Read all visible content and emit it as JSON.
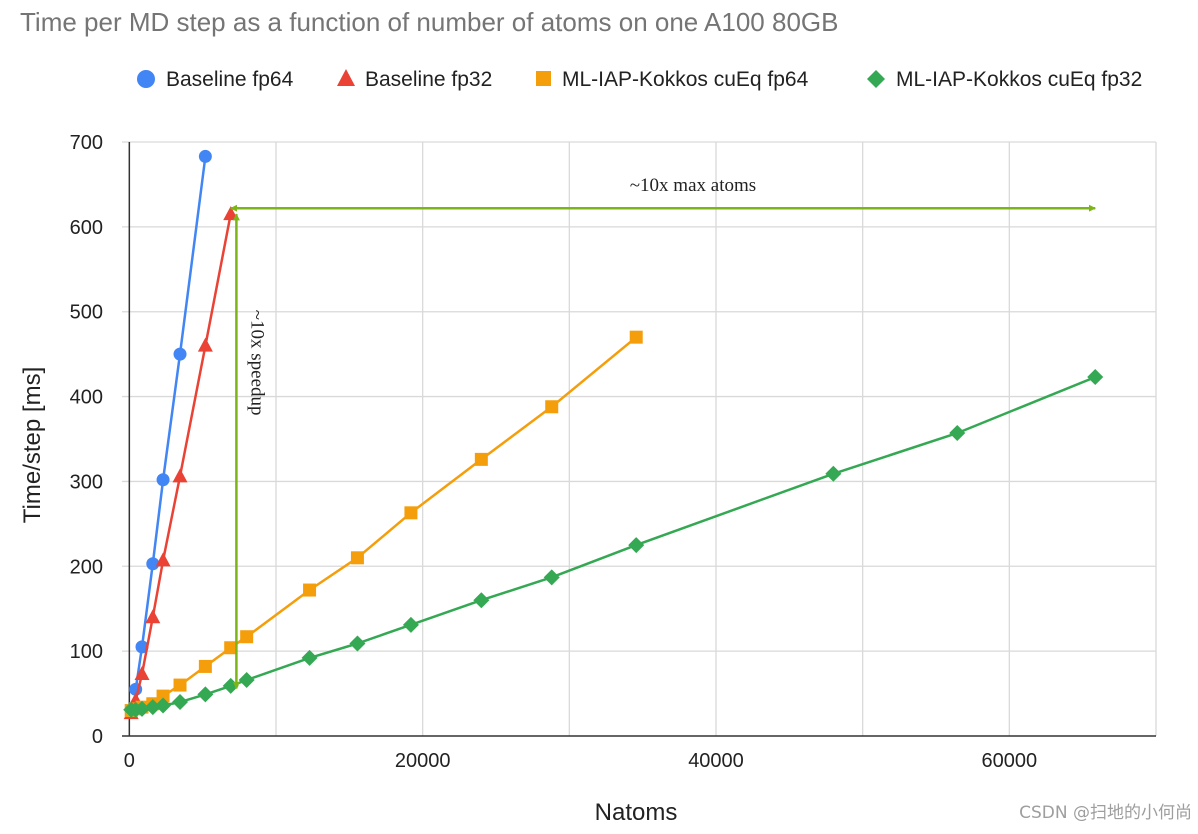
{
  "colors": {
    "baseline_fp64": "#4285f4",
    "baseline_fp32": "#ea4335",
    "mliap_fp64": "#f59e0b",
    "mliap_fp32": "#34a853",
    "annotation_arrow": "#7cb518",
    "grid": "#d9d9d9",
    "axis": "#333333"
  },
  "watermark": "CSDN @扫地的小何尚",
  "chart_data": {
    "type": "line",
    "title": "Time per MD step as a function of number of atoms on one A100 80GB",
    "xlabel": "Natoms",
    "ylabel": "Time/step [ms]",
    "xlim": [
      -500,
      70000
    ],
    "ylim": [
      0,
      700
    ],
    "x_ticks": [
      0,
      20000,
      40000,
      60000
    ],
    "x_tick_labels": [
      "0",
      "20000",
      "40000",
      "60000"
    ],
    "y_ticks": [
      0,
      100,
      200,
      300,
      400,
      500,
      600,
      700
    ],
    "y_tick_labels": [
      "0",
      "100",
      "200",
      "300",
      "400",
      "500",
      "600",
      "700"
    ],
    "x_gridlines": [
      0,
      10000,
      20000,
      30000,
      40000,
      50000,
      60000,
      70000
    ],
    "grid": true,
    "legend_position": "top",
    "series": [
      {
        "name": "Baseline fp64",
        "marker": "circle",
        "color": "#4285f4",
        "points": [
          [
            432,
            55
          ],
          [
            864,
            105
          ],
          [
            1600,
            203
          ],
          [
            2300,
            302
          ],
          [
            3456,
            450
          ],
          [
            5184,
            683
          ]
        ]
      },
      {
        "name": "Baseline fp32",
        "marker": "triangle",
        "color": "#ea4335",
        "points": [
          [
            128,
            27
          ],
          [
            432,
            42
          ],
          [
            864,
            73
          ],
          [
            1600,
            140
          ],
          [
            2300,
            207
          ],
          [
            3456,
            306
          ],
          [
            5184,
            460
          ],
          [
            6912,
            615
          ]
        ]
      },
      {
        "name": "ML-IAP-Kokkos cuEq fp64",
        "marker": "square",
        "color": "#f59e0b",
        "points": [
          [
            128,
            30
          ],
          [
            432,
            32
          ],
          [
            864,
            34
          ],
          [
            1600,
            38
          ],
          [
            2300,
            47
          ],
          [
            3456,
            60
          ],
          [
            5184,
            82
          ],
          [
            6912,
            104
          ],
          [
            8000,
            117
          ],
          [
            12288,
            172
          ],
          [
            15552,
            210
          ],
          [
            19200,
            263
          ],
          [
            24000,
            326
          ],
          [
            28800,
            388
          ],
          [
            34560,
            470
          ]
        ]
      },
      {
        "name": "ML-IAP-Kokkos cuEq fp32",
        "marker": "diamond",
        "color": "#34a853",
        "points": [
          [
            128,
            31
          ],
          [
            432,
            31
          ],
          [
            864,
            32
          ],
          [
            1600,
            34
          ],
          [
            2300,
            36
          ],
          [
            3456,
            40
          ],
          [
            5184,
            49
          ],
          [
            6912,
            59
          ],
          [
            8000,
            66
          ],
          [
            12288,
            92
          ],
          [
            15552,
            109
          ],
          [
            19200,
            131
          ],
          [
            24000,
            160
          ],
          [
            28800,
            187
          ],
          [
            34560,
            225
          ],
          [
            48000,
            309
          ],
          [
            56448,
            357
          ],
          [
            65856,
            423
          ]
        ]
      }
    ],
    "annotations": [
      {
        "text": "~10x max atoms",
        "type": "double-arrow-horizontal",
        "from": [
          6912,
          622
        ],
        "to": [
          65856,
          622
        ]
      },
      {
        "text": "~10x speedup",
        "type": "double-arrow-vertical",
        "from": [
          7300,
          615
        ],
        "to": [
          7300,
          56
        ]
      }
    ]
  }
}
